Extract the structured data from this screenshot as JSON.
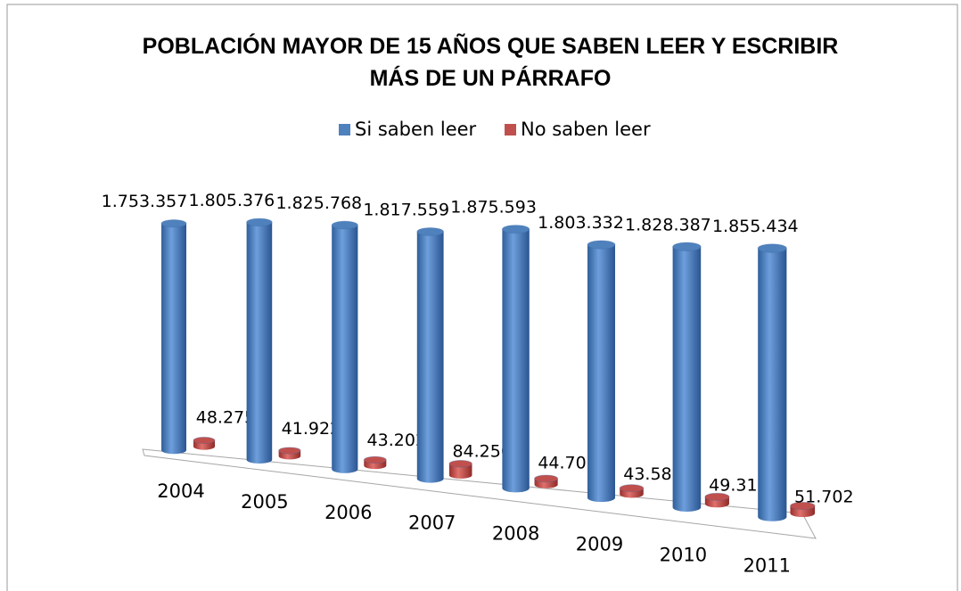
{
  "chart_data": {
    "type": "bar3d",
    "title": "POBLACIÓN MAYOR DE 15 AÑOS  QUE SABEN LEER Y ESCRIBIR MÁS DE UN PÁRRAFO",
    "categories": [
      "2004",
      "2005",
      "2006",
      "2007",
      "2008",
      "2009",
      "2010",
      "2011"
    ],
    "series": [
      {
        "name": "Si saben leer",
        "color": "#4f81bd",
        "values": [
          1753357,
          1805376,
          1825768,
          1817559,
          1875593,
          1803332,
          1828387,
          1855434
        ],
        "value_labels": [
          "1.753.357",
          "1.805.376",
          "1.825.768",
          "1.817.559",
          "1.875.593",
          "1.803.332",
          "1.828.387",
          "1.855.434"
        ]
      },
      {
        "name": "No saben leer",
        "color": "#c0504d",
        "values": [
          48275,
          41922,
          43202,
          84250,
          44708,
          43585,
          49313,
          51702
        ],
        "value_labels": [
          "48.275",
          "41.922",
          "43.202",
          "84.250",
          "44.708",
          "43.585",
          "49.313",
          "51.702"
        ]
      }
    ],
    "legend": "top"
  }
}
